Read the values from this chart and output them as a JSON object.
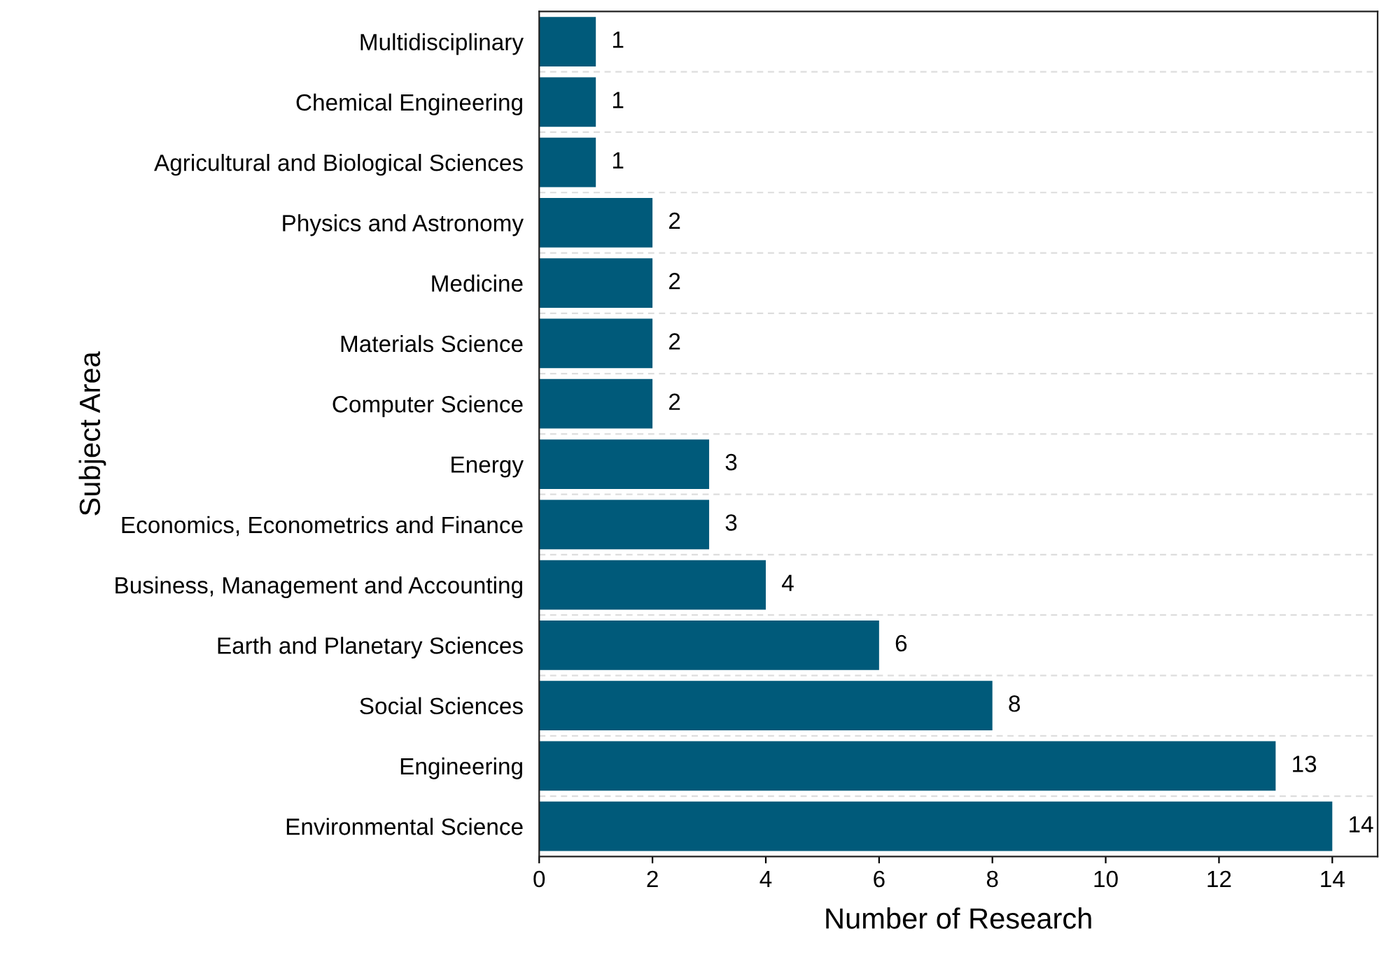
{
  "chart_data": {
    "type": "bar",
    "orientation": "horizontal",
    "xlabel": "Number of Research",
    "ylabel": "Subject Area",
    "categories": [
      "Multidisciplinary",
      "Chemical Engineering",
      "Agricultural and Biological Sciences",
      "Physics and Astronomy",
      "Medicine",
      "Materials Science",
      "Computer Science",
      "Energy",
      "Economics, Econometrics and Finance",
      "Business, Management and Accounting",
      "Earth and Planetary Sciences",
      "Social Sciences",
      "Engineering",
      "Environmental Science"
    ],
    "values": [
      1,
      1,
      1,
      2,
      2,
      2,
      2,
      3,
      3,
      4,
      6,
      8,
      13,
      14
    ],
    "color": "#005a7a",
    "xlim": [
      0,
      14.8
    ],
    "xticks": [
      0,
      2,
      4,
      6,
      8,
      10,
      12,
      14
    ],
    "grid": "y",
    "data_labels": true
  }
}
